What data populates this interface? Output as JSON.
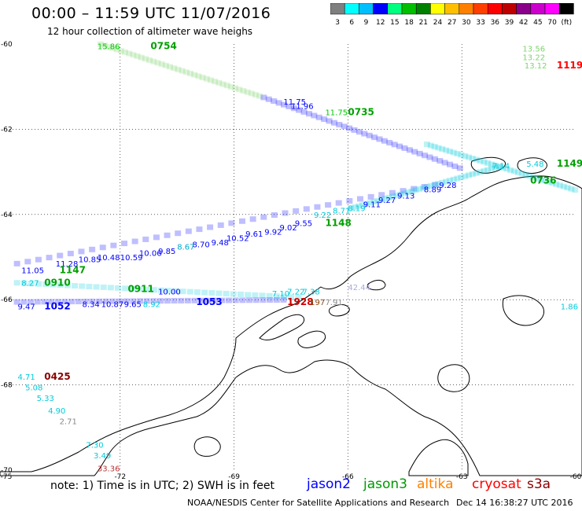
{
  "title": "00:00  –  11:59 UTC 11/07/2016",
  "subtitle": "12 hour collection of altimeter wave heighs",
  "color_scale": {
    "labels": [
      "3",
      "6",
      "9",
      "12",
      "15",
      "18",
      "21",
      "24",
      "27",
      "30",
      "33",
      "36",
      "39",
      "42",
      "45",
      "70",
      "(ft)"
    ],
    "colors": [
      "#7f7f7f",
      "#00ffff",
      "#00bfff",
      "#0000ff",
      "#00ff7f",
      "#00bf00",
      "#008000",
      "#ffff00",
      "#ffbf00",
      "#ff7f00",
      "#ff3f00",
      "#ff0000",
      "#bf0000",
      "#8b008b",
      "#cc00cc",
      "#ff00ff",
      "#000000"
    ]
  },
  "map": {
    "lon_ticks": [
      "-75",
      "-72",
      "-69",
      "-66",
      "-63",
      "-60"
    ],
    "lat_ticks": [
      "-60",
      "-62",
      "-64",
      "-66",
      "-68",
      "-70"
    ],
    "lon_range": [
      -75,
      -60
    ],
    "lat_range": [
      -70,
      -60
    ]
  },
  "observations": [
    {
      "text": "13.56",
      "lon": -61.4,
      "lat": -60.1,
      "color": "#7fd36f"
    },
    {
      "text": "13.22",
      "lon": -61.4,
      "lat": -60.3,
      "color": "#7fd36f"
    },
    {
      "text": "13.12",
      "lon": -61.35,
      "lat": -60.5,
      "color": "#7fd36f"
    },
    {
      "text": "1119",
      "lon": -60.5,
      "lat": -60.5,
      "color": "#ff0000"
    },
    {
      "text": "0754",
      "lon": -71.2,
      "lat": -60.05,
      "color": "#00a000"
    },
    {
      "text": "15.86",
      "lon": -72.6,
      "lat": -60.05,
      "color": "#00c800"
    },
    {
      "text": "11.75",
      "lon": -67.7,
      "lat": -61.35,
      "color": "#0000ff"
    },
    {
      "text": "11.96",
      "lon": -67.5,
      "lat": -61.45,
      "color": "#0000ff"
    },
    {
      "text": "11.75",
      "lon": -66.6,
      "lat": -61.6,
      "color": "#00c800"
    },
    {
      "text": "0735",
      "lon": -66.0,
      "lat": -61.6,
      "color": "#00a000"
    },
    {
      "text": "1149",
      "lon": -60.5,
      "lat": -62.8,
      "color": "#00a000"
    },
    {
      "text": "0736",
      "lon": -61.2,
      "lat": -63.2,
      "color": "#00a000"
    },
    {
      "text": "7.14",
      "lon": -62.2,
      "lat": -62.85,
      "color": "#00ccdd"
    },
    {
      "text": "5.48",
      "lon": -61.3,
      "lat": -62.8,
      "color": "#00ccdd"
    },
    {
      "text": "9.28",
      "lon": -63.6,
      "lat": -63.3,
      "color": "#0000ff"
    },
    {
      "text": "8.89",
      "lon": -64.0,
      "lat": -63.4,
      "color": "#0000ff"
    },
    {
      "text": "9.13",
      "lon": -64.7,
      "lat": -63.55,
      "color": "#0000ff"
    },
    {
      "text": "9.27",
      "lon": -65.2,
      "lat": -63.65,
      "color": "#0000ff"
    },
    {
      "text": "9.11",
      "lon": -65.6,
      "lat": -63.75,
      "color": "#0000ff"
    },
    {
      "text": "8.19",
      "lon": -66.0,
      "lat": -63.85,
      "color": "#00ccdd"
    },
    {
      "text": "8.71",
      "lon": -66.4,
      "lat": -63.9,
      "color": "#00ccdd"
    },
    {
      "text": "9.22",
      "lon": -66.9,
      "lat": -64.0,
      "color": "#00ccdd"
    },
    {
      "text": "1148",
      "lon": -66.6,
      "lat": -64.2,
      "color": "#00a000"
    },
    {
      "text": "9.55",
      "lon": -67.4,
      "lat": -64.2,
      "color": "#0000ff"
    },
    {
      "text": "9.02",
      "lon": -67.8,
      "lat": -64.3,
      "color": "#0000ff"
    },
    {
      "text": "9.92",
      "lon": -68.2,
      "lat": -64.4,
      "color": "#0000ff"
    },
    {
      "text": "9.61",
      "lon": -68.7,
      "lat": -64.45,
      "color": "#0000ff"
    },
    {
      "text": "10.52",
      "lon": -69.2,
      "lat": -64.55,
      "color": "#0000ff"
    },
    {
      "text": "9.48",
      "lon": -69.6,
      "lat": -64.65,
      "color": "#0000ff"
    },
    {
      "text": "8.70",
      "lon": -70.1,
      "lat": -64.7,
      "color": "#0000ff"
    },
    {
      "text": "8.67",
      "lon": -70.5,
      "lat": -64.75,
      "color": "#00aacc"
    },
    {
      "text": "9.85",
      "lon": -71.0,
      "lat": -64.85,
      "color": "#0000ff"
    },
    {
      "text": "10.06",
      "lon": -71.5,
      "lat": -64.9,
      "color": "#0000ff"
    },
    {
      "text": "10.59",
      "lon": -72.0,
      "lat": -65.0,
      "color": "#0000ff"
    },
    {
      "text": "10.48",
      "lon": -72.6,
      "lat": -65.0,
      "color": "#0000ff"
    },
    {
      "text": "10.85",
      "lon": -73.1,
      "lat": -65.05,
      "color": "#0000ff"
    },
    {
      "text": "11.28",
      "lon": -73.7,
      "lat": -65.15,
      "color": "#0000ff"
    },
    {
      "text": "1147",
      "lon": -73.6,
      "lat": -65.3,
      "color": "#00a000"
    },
    {
      "text": "11.05",
      "lon": -74.6,
      "lat": -65.3,
      "color": "#0000ff"
    },
    {
      "text": "8.27",
      "lon": -74.6,
      "lat": -65.6,
      "color": "#00ccdd"
    },
    {
      "text": "0910",
      "lon": -74.0,
      "lat": -65.6,
      "color": "#00a000"
    },
    {
      "text": "0911",
      "lon": -71.8,
      "lat": -65.75,
      "color": "#00a000"
    },
    {
      "text": "10.00",
      "lon": -71.0,
      "lat": -65.8,
      "color": "#0000ff"
    },
    {
      "text": "7.10",
      "lon": -68.0,
      "lat": -65.85,
      "color": "#00ccdd"
    },
    {
      "text": "7.22",
      "lon": -67.6,
      "lat": -65.8,
      "color": "#00ccdd"
    },
    {
      "text": "7.38",
      "lon": -67.2,
      "lat": -65.8,
      "color": "#00ccdd"
    },
    {
      "text": "42.44",
      "lon": -66.0,
      "lat": -65.7,
      "color": "#aaaadd"
    },
    {
      "text": "9.47",
      "lon": -74.7,
      "lat": -66.15,
      "color": "#0000ff"
    },
    {
      "text": "1052",
      "lon": -74.0,
      "lat": -66.15,
      "color": "#0000ff"
    },
    {
      "text": "8.34",
      "lon": -73.0,
      "lat": -66.1,
      "color": "#0000ff"
    },
    {
      "text": "10.87",
      "lon": -72.5,
      "lat": -66.1,
      "color": "#0000ff"
    },
    {
      "text": "9.65",
      "lon": -71.9,
      "lat": -66.1,
      "color": "#0000ff"
    },
    {
      "text": "8.92",
      "lon": -71.4,
      "lat": -66.1,
      "color": "#00ccdd"
    },
    {
      "text": "1053",
      "lon": -70.0,
      "lat": -66.05,
      "color": "#0000ff"
    },
    {
      "text": "1928",
      "lon": -67.6,
      "lat": -66.05,
      "color": "#cc0000"
    },
    {
      "text": "197",
      "lon": -67.0,
      "lat": -66.05,
      "color": "#8b4513"
    },
    {
      "text": "7.91",
      "lon": -66.6,
      "lat": -66.05,
      "color": "#888888"
    },
    {
      "text": "1.86",
      "lon": -60.4,
      "lat": -66.15,
      "color": "#00ccdd"
    },
    {
      "text": "4.71",
      "lon": -74.7,
      "lat": -67.8,
      "color": "#00ccdd"
    },
    {
      "text": "0425",
      "lon": -74.0,
      "lat": -67.8,
      "color": "#8b0000"
    },
    {
      "text": "5.08",
      "lon": -74.5,
      "lat": -68.05,
      "color": "#00ccdd"
    },
    {
      "text": "5.33",
      "lon": -74.2,
      "lat": -68.3,
      "color": "#00ccdd"
    },
    {
      "text": "4.90",
      "lon": -73.9,
      "lat": -68.6,
      "color": "#00ccdd"
    },
    {
      "text": "2.71",
      "lon": -73.6,
      "lat": -68.85,
      "color": "#888888"
    },
    {
      "text": "7.30",
      "lon": -72.9,
      "lat": -69.4,
      "color": "#00ccdd"
    },
    {
      "text": "3.49",
      "lon": -72.7,
      "lat": -69.65,
      "color": "#00ccdd"
    },
    {
      "text": "33.36",
      "lon": -72.6,
      "lat": -69.95,
      "color": "#bb3333"
    }
  ],
  "tracks": [
    {
      "color": "#7fd36f",
      "from": [
        -72.6,
        -60.05
      ],
      "to": [
        -68.3,
        -61.3
      ]
    },
    {
      "color": "#0000ff",
      "from": [
        -68.3,
        -61.3
      ],
      "to": [
        -63.0,
        -63.0
      ]
    },
    {
      "color": "#00ccdd",
      "from": [
        -64.0,
        -62.4
      ],
      "to": [
        -60.0,
        -63.5
      ]
    },
    {
      "color": "#0000ff",
      "from": [
        -74.8,
        -65.2
      ],
      "to": [
        -63.5,
        -63.3
      ]
    },
    {
      "color": "#00ccdd",
      "from": [
        -66.0,
        -63.9
      ],
      "to": [
        -62.0,
        -62.9
      ]
    },
    {
      "color": "#00ccdd",
      "from": [
        -74.8,
        -65.65
      ],
      "to": [
        -67.2,
        -66.0
      ]
    },
    {
      "color": "#0000ff",
      "from": [
        -74.8,
        -66.1
      ],
      "to": [
        -67.6,
        -66.05
      ]
    }
  ],
  "legend": {
    "note": "note: 1) Time is in UTC; 2) SWH is in feet",
    "satellites": [
      {
        "name": "jason2",
        "color": "#0000ff"
      },
      {
        "name": "jason3",
        "color": "#009900"
      },
      {
        "name": "altika",
        "color": "#ff8000"
      },
      {
        "name": "cryosat",
        "color": "#ff0000"
      },
      {
        "name": "s3a",
        "color": "#8b0000"
      }
    ]
  },
  "credit": "NOAA/NESDIS Center for Satellite Applications and Research",
  "timestamp": "Dec 14 16:38:27 UTC 2016"
}
